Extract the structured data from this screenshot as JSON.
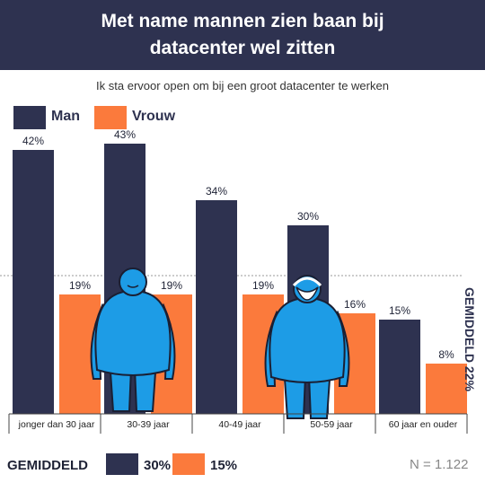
{
  "header": {
    "title_line1": "Met name mannen zien baan bij",
    "title_line2": "datacenter wel zitten"
  },
  "subtitle": "Ik sta ervoor open om bij een groot datacenter te werken",
  "legend": {
    "man": "Man",
    "vrouw": "Vrouw"
  },
  "colors": {
    "man": "#2e3250",
    "vrouw": "#fb7a3c",
    "header_bg": "#2e3250",
    "figure": "#1d9ce6"
  },
  "chart_data": {
    "type": "bar",
    "title": "Met name mannen zien baan bij datacenter wel zitten",
    "subtitle": "Ik sta ervoor open om bij een groot datacenter te werken",
    "categories": [
      "jonger dan 30 jaar",
      "30-39 jaar",
      "40-49 jaar",
      "50-59 jaar",
      "60 jaar en ouder"
    ],
    "series": [
      {
        "name": "Man",
        "values": [
          42,
          43,
          34,
          30,
          15
        ],
        "labels": [
          "42%",
          "43%",
          "34%",
          "30%",
          "15%"
        ]
      },
      {
        "name": "Vrouw",
        "values": [
          19,
          19,
          19,
          16,
          8
        ],
        "labels": [
          "19%",
          "19%",
          "19%",
          "16%",
          "8%"
        ]
      }
    ],
    "average_line": {
      "value": 22,
      "label": "GEMIDDELD 22%"
    },
    "ylim": [
      0,
      50
    ],
    "legend_position": "top-left",
    "grid": false
  },
  "icons": [
    "person-icon",
    "person-icon"
  ],
  "footer": {
    "label": "GEMIDDELD",
    "man_value": "30%",
    "vrouw_value": "15%",
    "n": "N = 1.122"
  }
}
